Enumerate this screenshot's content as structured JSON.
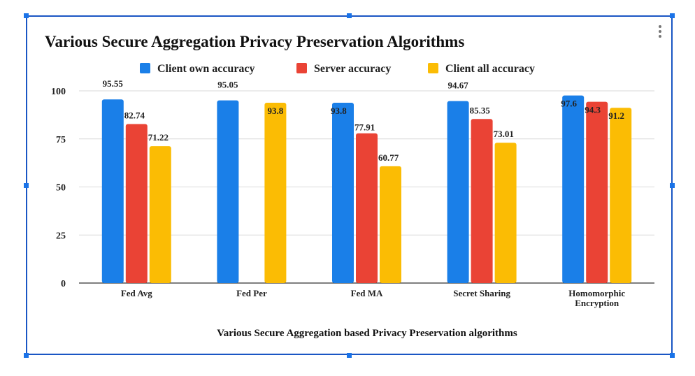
{
  "chart_data": {
    "type": "bar",
    "title": "Various Secure Aggregation Privacy Preservation Algorithms",
    "xlabel": "Various Secure Aggregation based Privacy Preservation algorithms",
    "ylabel": "",
    "ylim": [
      0,
      100
    ],
    "yticks": [
      "0",
      "25",
      "50",
      "75",
      "100"
    ],
    "grid": true,
    "legend_position": "top",
    "categories": [
      "Fed Avg",
      "Fed Per",
      "Fed MA",
      "Secret Sharing",
      "Homomorphic Encryption"
    ],
    "category_lines": [
      [
        "Fed Avg"
      ],
      [
        "Fed Per"
      ],
      [
        "Fed MA"
      ],
      [
        "Secret Sharing"
      ],
      [
        "Homomorphic",
        "Encryption"
      ]
    ],
    "series": [
      {
        "name": "Client own accuracy",
        "color": "#1a7fe8",
        "values": [
          95.55,
          95.05,
          93.8,
          94.67,
          97.6
        ],
        "labels": [
          "95.55",
          "95.05",
          "93.8",
          "94.67",
          "97.6"
        ]
      },
      {
        "name": "Server accuracy",
        "color": "#ea4335",
        "values": [
          82.74,
          null,
          77.91,
          85.35,
          94.3
        ],
        "labels": [
          "82.74",
          "",
          "77.91",
          "85.35",
          "94.3"
        ]
      },
      {
        "name": "Client all accuracy",
        "color": "#fbbc04",
        "values": [
          71.22,
          93.8,
          60.77,
          73.01,
          91.2
        ],
        "labels": [
          "71.22",
          "93.8",
          "60.77",
          "73.01",
          "91.2"
        ]
      }
    ]
  },
  "menu_icon": "more-vert-icon"
}
